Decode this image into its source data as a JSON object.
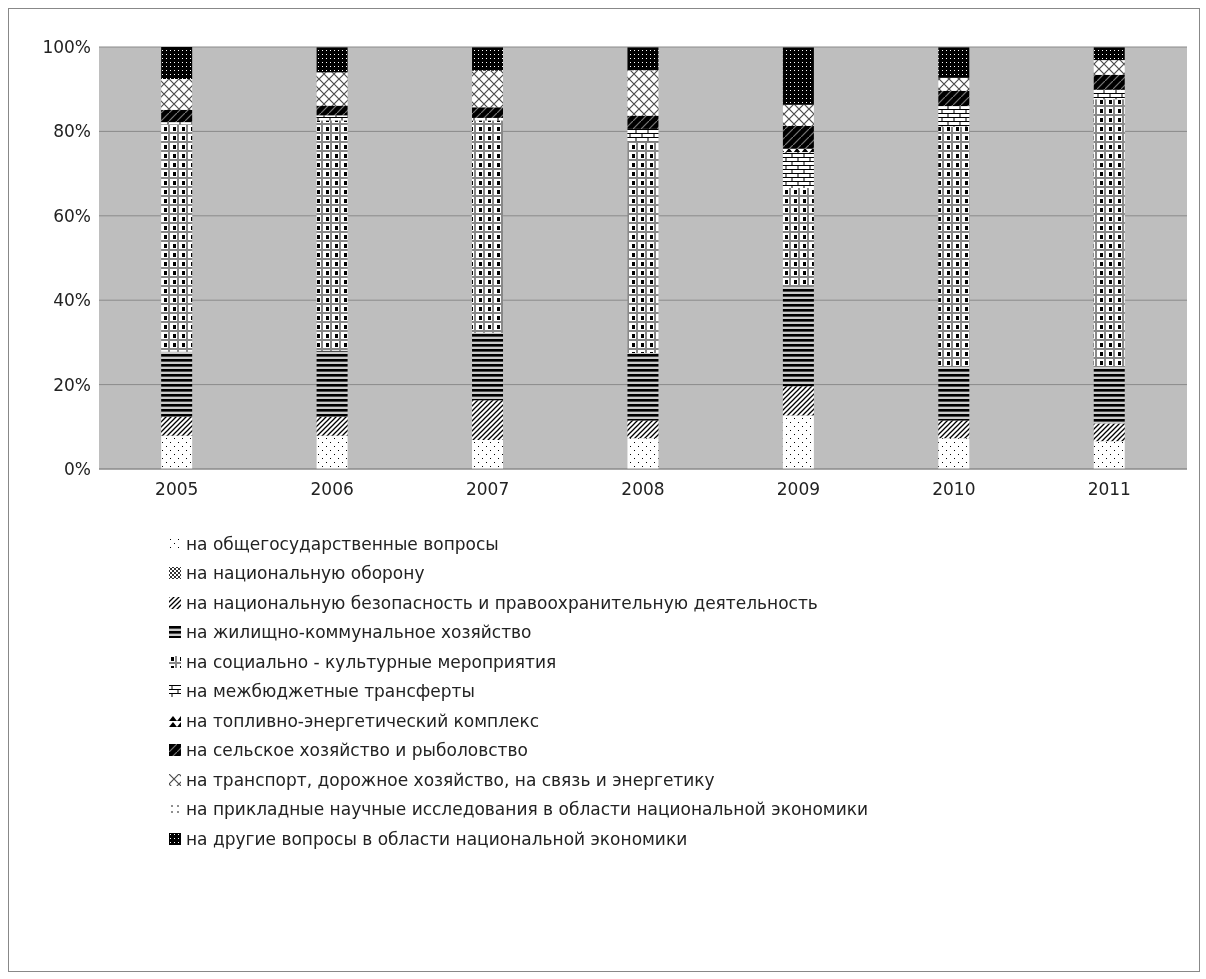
{
  "chart_data": {
    "type": "bar",
    "stacked": true,
    "categories": [
      "2005",
      "2006",
      "2007",
      "2008",
      "2009",
      "2010",
      "2011"
    ],
    "series": [
      {
        "name": "на общегосударственные вопросы",
        "color": "#000000",
        "values": [
          7.9,
          7.9,
          6.9,
          7.3,
          12.7,
          7.3,
          6.6
        ]
      },
      {
        "name": "на национальную оборону",
        "color": "#000000",
        "values": [
          null,
          null,
          null,
          null,
          null,
          null,
          null
        ]
      },
      {
        "name": "на национальную безопасность и правоохранительную деятельность",
        "color": "#000000",
        "values": [
          4.5,
          4.5,
          9.4,
          4.2,
          6.9,
          4.2,
          4.2
        ]
      },
      {
        "name": "на жилищно-коммунальное хозяйство",
        "color": "#000000",
        "values": [
          15.4,
          15.6,
          16.0,
          16.0,
          23.5,
          12.7,
          13.5
        ]
      },
      {
        "name": "на социально - культурные мероприятия",
        "color": "#000000",
        "values": [
          53.9,
          54.6,
          50.3,
          50.2,
          23.5,
          56.9,
          63.3
        ]
      },
      {
        "name": "на межбюджетные трансферты",
        "color": "#000000",
        "values": [
          0.5,
          1.2,
          0.6,
          2.9,
          8.5,
          4.9,
          2.3
        ]
      },
      {
        "name": "на топливно-энергетический комплекс",
        "color": "#000000",
        "values": [
          null,
          null,
          null,
          null,
          0.8,
          null,
          null
        ]
      },
      {
        "name": "на сельское хозяйство и рыболовство",
        "color": "#000000",
        "values": [
          2.9,
          2.3,
          2.5,
          3.1,
          5.4,
          3.6,
          3.5
        ]
      },
      {
        "name": "на транспорт, дорожное хозяйство, на связь и энергетику",
        "color": "#000000",
        "values": [
          7.3,
          7.9,
          8.7,
          10.8,
          5.0,
          3.1,
          3.5
        ]
      },
      {
        "name": "на прикладные научные исследования в области национальной экономики",
        "color": "#000000",
        "values": [
          null,
          null,
          null,
          null,
          null,
          null,
          null
        ]
      },
      {
        "name": "на другие вопросы в области национальной экономики",
        "color": "#000000",
        "values": [
          7.6,
          5.9,
          5.5,
          5.4,
          13.6,
          7.2,
          3.0
        ]
      }
    ],
    "ylim": [
      0,
      100
    ],
    "yticks": [
      {
        "value": 0,
        "label": "0%"
      },
      {
        "value": 20,
        "label": "20%"
      },
      {
        "value": 40,
        "label": "40%"
      },
      {
        "value": 60,
        "label": "60%"
      },
      {
        "value": 80,
        "label": "80%"
      },
      {
        "value": 100,
        "label": "100%"
      }
    ],
    "grid": "y",
    "legend": "bottom"
  }
}
